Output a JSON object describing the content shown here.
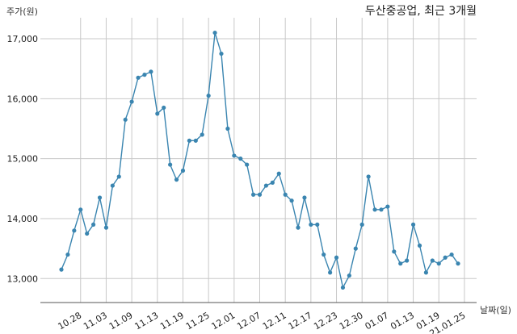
{
  "chart_data": {
    "type": "line",
    "title": "두산중공업, 최근 3개월",
    "ylabel": "주가(원)",
    "xlabel": "날짜(일)",
    "ylim": [
      12600,
      17350
    ],
    "yticks": [
      13000,
      14000,
      15000,
      16000,
      17000
    ],
    "ytick_labels": [
      "13,000",
      "14,000",
      "15,000",
      "16,000",
      "17,000"
    ],
    "xtick_labels": [
      "10.28",
      "11.03",
      "11.09",
      "11.13",
      "11.19",
      "11.25",
      "12.01",
      "12.07",
      "12.11",
      "12.17",
      "12.23",
      "12.30",
      "01.07",
      "01.13",
      "01.19",
      "21.01.25"
    ],
    "xtick_positions": [
      3,
      7,
      11,
      15,
      19,
      23,
      27,
      31,
      35,
      39,
      43,
      47,
      51,
      55,
      59,
      63
    ],
    "grid": true,
    "line_color": "#3a85b0",
    "series": [
      {
        "values": [
          13150,
          13400,
          13800,
          14150,
          13750,
          13900,
          14350,
          13850,
          14550,
          14700,
          15650,
          15950,
          16350,
          16400,
          16450,
          15750,
          15850,
          14900,
          14650,
          14800,
          15300,
          15300,
          15400,
          16050,
          17100,
          16750,
          15500,
          15050,
          15000,
          14900,
          14400,
          14400,
          14550,
          14600,
          14750,
          14400,
          14300,
          13850,
          14350,
          13900,
          13900,
          13400,
          13100,
          13350,
          12850,
          13050,
          13500,
          13900,
          14700,
          14150,
          14150,
          14200,
          13450,
          13250,
          13300,
          13900,
          13550,
          13100,
          13300,
          13250,
          13350,
          13400,
          13250
        ]
      }
    ]
  }
}
